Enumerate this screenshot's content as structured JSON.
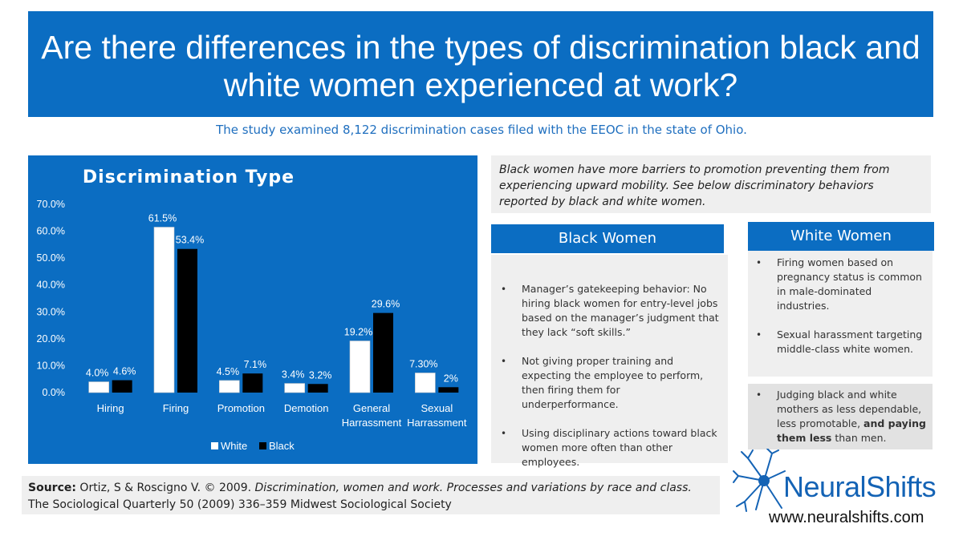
{
  "header": {
    "title": "Are there differences in the types of discrimination black and white women experienced at work?"
  },
  "subtitle": "The study examined 8,122 discrimination cases filed with the EEOC in the state of Ohio.",
  "intro": "Black women have more barriers to promotion preventing them from experiencing upward mobility. See below  discriminatory behaviors reported by black and white women.",
  "black_women": {
    "header": "Black Women",
    "items": [
      {
        "text": "Manager’s gatekeeping behavior: No hiring black women for entry-level jobs based on the manager’s judgment that they lack “soft skills.”"
      },
      {
        "text": "Not giving proper training and expecting the employee to perform, then firing them for underperformance."
      },
      {
        "text": "Using disciplinary actions toward black women more often than other employees."
      }
    ]
  },
  "white_women": {
    "header": "White Women",
    "items": [
      {
        "text": "Firing women based on pregnancy status is common in male-dominated industries."
      },
      {
        "text": "Sexual harassment targeting middle-class white women."
      }
    ],
    "shared_item": {
      "text_before": "Judging black and white mothers as less dependable, less promotable, ",
      "text_bold": "and paying them less",
      "text_after": " than men."
    }
  },
  "source": {
    "label": "Source:",
    "authors": " Ortiz, S & Roscigno V. © 2009. ",
    "title_italic": "Discrimination, women and work. Processes and variations by race and class.",
    "journal": "The Sociological Quarterly 50 (2009) 336–359 Midwest Sociological Society"
  },
  "logo": {
    "name": "NeuralShifts",
    "url": "www.neuralshifts.com"
  },
  "colors": {
    "brand_blue": "#0b6dc2",
    "panel_gray": "#efefef",
    "white_series": "#ffffff",
    "black_series": "#000000"
  },
  "chart_data": {
    "type": "bar",
    "title": "Discrimination Type",
    "categories": [
      [
        "Hiring"
      ],
      [
        "Firing"
      ],
      [
        "Promotion"
      ],
      [
        "Demotion"
      ],
      [
        "General",
        "Harrassment"
      ],
      [
        "Sexual",
        "Harrassment"
      ]
    ],
    "series": [
      {
        "name": "White",
        "values": [
          4.0,
          61.5,
          4.5,
          3.4,
          19.2,
          7.3
        ],
        "labels": [
          "4.0%",
          "61.5%",
          "4.5%",
          "3.4%",
          "19.2%",
          "7.30%"
        ],
        "color": "#ffffff"
      },
      {
        "name": "Black",
        "values": [
          4.6,
          53.4,
          7.1,
          3.2,
          29.6,
          2.0
        ],
        "labels": [
          "4.6%",
          "53.4%",
          "7.1%",
          "3.2%",
          "29.6%",
          "2%"
        ],
        "color": "#000000"
      }
    ],
    "y_ticks": [
      "0.0%",
      "10.0%",
      "20.0%",
      "30.0%",
      "40.0%",
      "50.0%",
      "60.0%",
      "70.0%"
    ],
    "ylim": [
      0,
      70
    ],
    "grid": false,
    "legend_position": "bottom"
  }
}
